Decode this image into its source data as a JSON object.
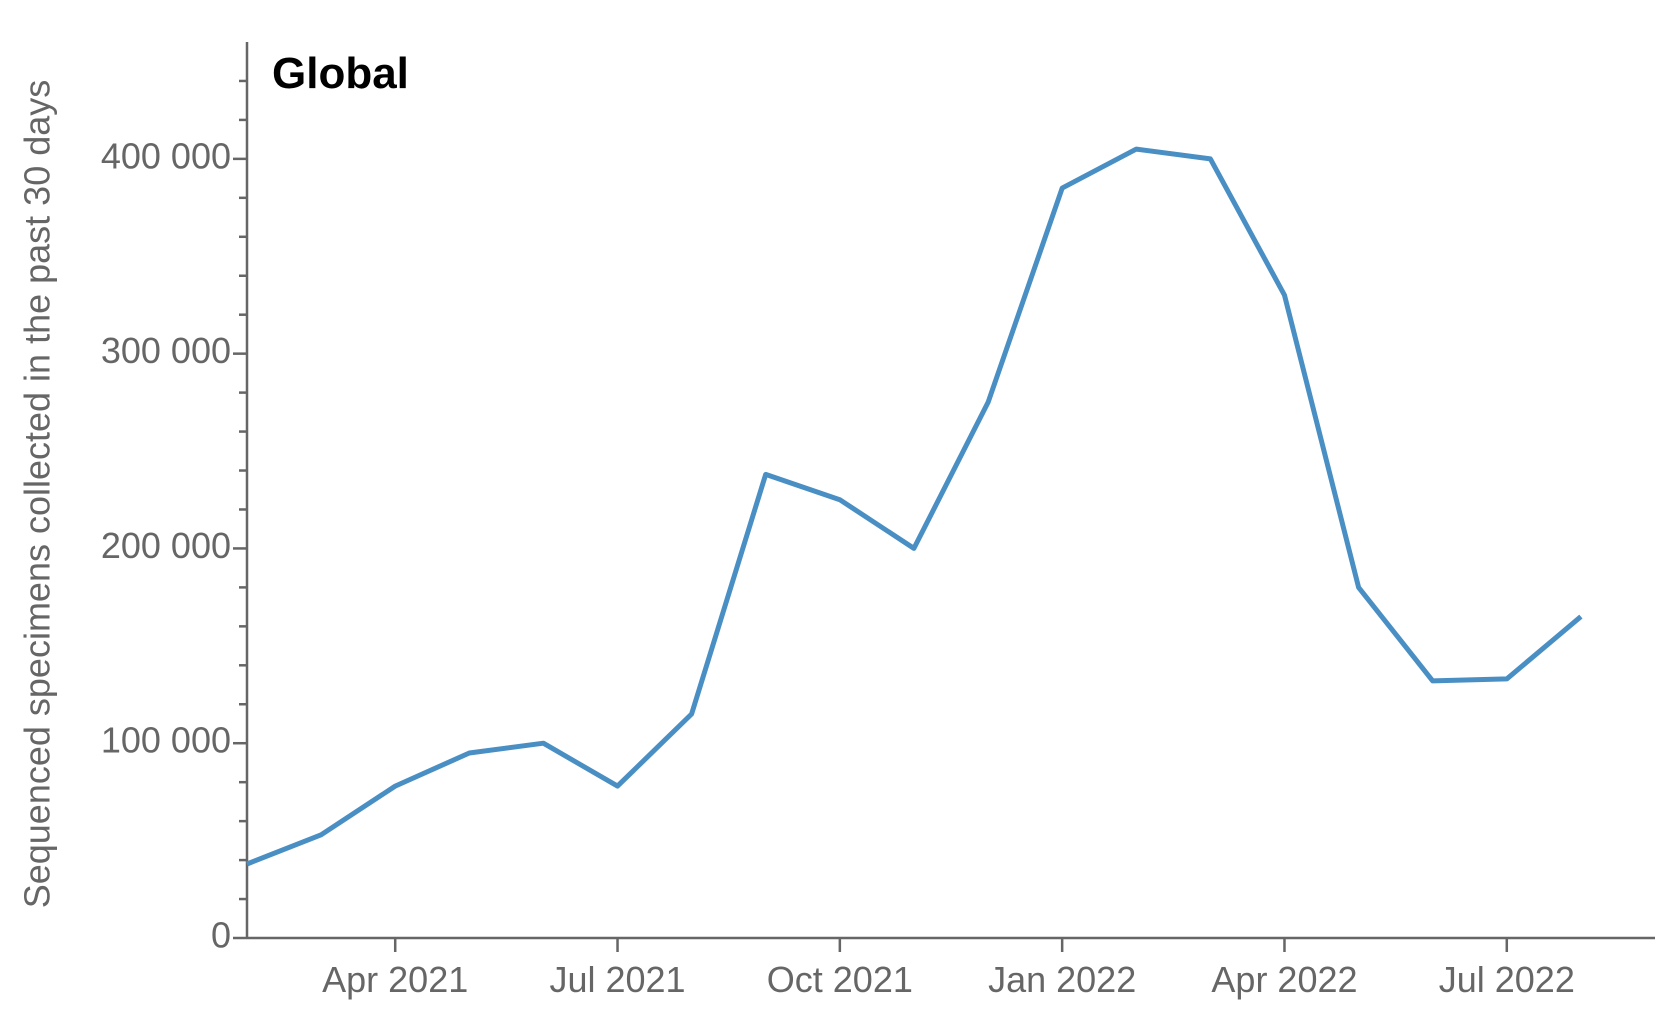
{
  "chart_data": {
    "type": "line",
    "title": "Global",
    "y_label": "Sequenced specimens collected in the past 30 days",
    "x": [
      "2021-02",
      "2021-03",
      "2021-04",
      "2021-05",
      "2021-06",
      "2021-07",
      "2021-08",
      "2021-09",
      "2021-10",
      "2021-11",
      "2021-12",
      "2022-01",
      "2022-02",
      "2022-03",
      "2022-04",
      "2022-05",
      "2022-06",
      "2022-07",
      "2022-08"
    ],
    "series": [
      {
        "name": "Global",
        "color": "#4a8fc4",
        "values": [
          38000,
          53000,
          78000,
          95000,
          100000,
          78000,
          115000,
          238000,
          225000,
          200000,
          275000,
          385000,
          405000,
          400000,
          330000,
          180000,
          132000,
          133000,
          165000
        ]
      }
    ],
    "xlim": [
      "2021-02",
      "2022-09"
    ],
    "xticks": [
      {
        "value": "2021-04",
        "label": "Apr 2021"
      },
      {
        "value": "2021-07",
        "label": "Jul 2021"
      },
      {
        "value": "2021-10",
        "label": "Oct 2021"
      },
      {
        "value": "2022-01",
        "label": "Jan 2022"
      },
      {
        "value": "2022-04",
        "label": "Apr 2022"
      },
      {
        "value": "2022-07",
        "label": "Jul 2022"
      }
    ],
    "ylim": [
      0,
      460000
    ],
    "yticks": [
      0,
      {
        "value": 100000,
        "label": "100 000"
      },
      {
        "value": 200000,
        "label": "200 000"
      },
      {
        "value": 300000,
        "label": "300 000"
      },
      {
        "value": 400000,
        "label": "400 000"
      }
    ],
    "y_minor_ticks": [
      20000,
      40000,
      60000,
      80000,
      120000,
      140000,
      160000,
      180000,
      220000,
      240000,
      260000,
      280000,
      320000,
      340000,
      360000,
      380000,
      420000,
      440000
    ]
  }
}
